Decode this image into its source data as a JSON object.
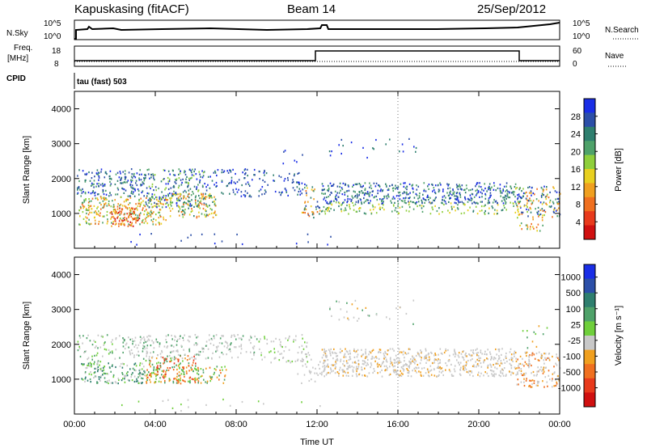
{
  "header": {
    "station": "Kapuskasing (fitACF)",
    "beam": "Beam 14",
    "date": "25/Sep/2012"
  },
  "strip": {
    "nsky_label": "N.Sky",
    "nsearch_label": "N.Search",
    "log_ticks": [
      "10^5",
      "10^0"
    ],
    "freq_label_1": "Freq.",
    "freq_label_2": "[MHz]",
    "freq_ticks": [
      "18",
      "8"
    ],
    "nave_label": "Nave",
    "nave_ticks": [
      "60",
      "0"
    ],
    "cpid_label": "CPID",
    "cpid_text": "tau (fast) 503"
  },
  "colors": {
    "power": [
      "#1a2ee6",
      "#2c4fa8",
      "#2f7f6f",
      "#4fa26a",
      "#8fcf3c",
      "#e8d020",
      "#f0a020",
      "#f07020",
      "#e83a1c",
      "#d01010"
    ],
    "velocity": [
      "#1a2ee6",
      "#2c4fa8",
      "#2f7f6f",
      "#4fa26a",
      "#6fcf3c",
      "#c8c8c8",
      "#f0a020",
      "#f07020",
      "#e83a1c",
      "#d01010"
    ],
    "scatter_grey": "#c8c8c8"
  },
  "chart_data": [
    {
      "type": "heatmap",
      "panel": "power",
      "ylabel": "Slant Range [km]",
      "ylim": [
        0,
        4500
      ],
      "yticks": [
        "1000",
        "2000",
        "3000",
        "4000"
      ],
      "xticks": [
        "00:00",
        "04:00",
        "08:00",
        "12:00",
        "16:00",
        "20:00",
        "00:00"
      ],
      "colorbar_label": "Power [dB]",
      "colorbar_ticks": [
        "4",
        "8",
        "12",
        "16",
        "20",
        "24",
        "28"
      ]
    },
    {
      "type": "heatmap",
      "panel": "velocity",
      "ylabel": "Slant Range [km]",
      "xlabel": "Time UT",
      "ylim": [
        0,
        4500
      ],
      "yticks": [
        "1000",
        "2000",
        "3000",
        "4000"
      ],
      "xticks": [
        "00:00",
        "04:00",
        "08:00",
        "12:00",
        "16:00",
        "20:00",
        "00:00"
      ],
      "colorbar_label": "Velocity [m s⁻¹]",
      "colorbar_ticks": [
        "1000",
        "500",
        "100",
        "25",
        "-25",
        "-100",
        "-500",
        "-1000"
      ]
    }
  ]
}
